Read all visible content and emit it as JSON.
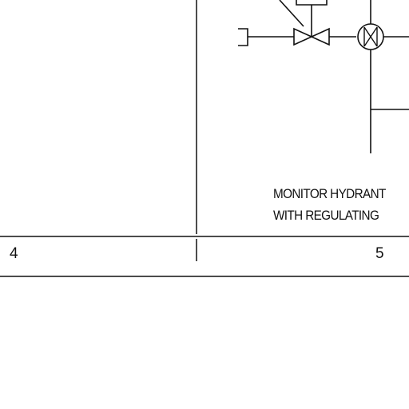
{
  "diagram": {
    "caption": {
      "line1": "MONITOR HYDRANT",
      "line2": "WITH REGULATING"
    },
    "cells": {
      "left_number": "4",
      "right_number": "5"
    },
    "symbols": [
      "cap-end",
      "globe-valve",
      "valve-stem-actuator",
      "flow-indicator",
      "pipe-branch"
    ],
    "colors": {
      "ink": "#111111",
      "paper": "#ffffff"
    }
  }
}
